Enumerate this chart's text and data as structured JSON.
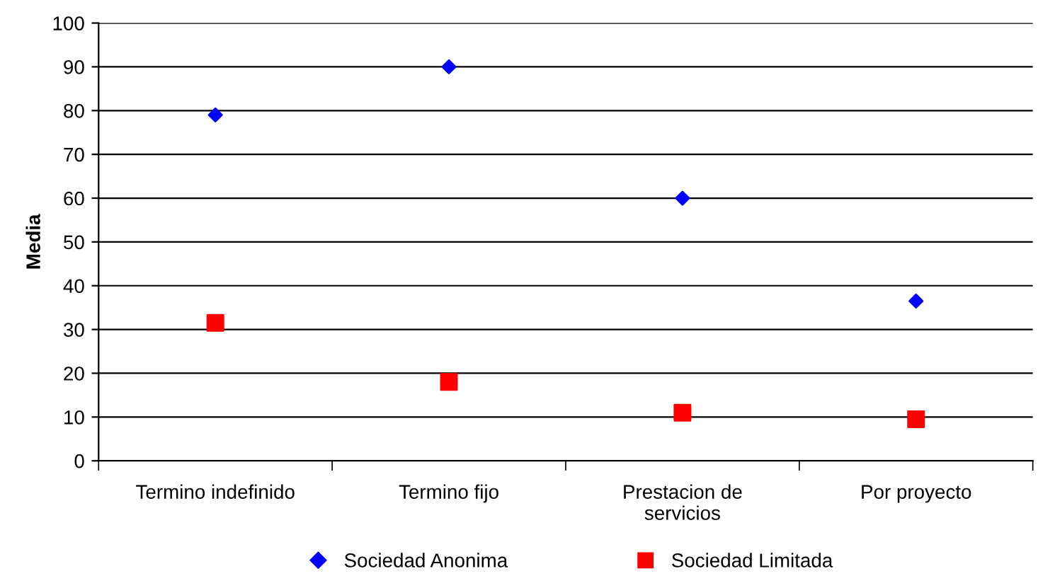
{
  "chart_data": {
    "type": "scatter",
    "ylabel": "Media",
    "categories": [
      "Termino indefinido",
      "Termino fijo",
      "Prestacion de\nservicios",
      "Por proyecto"
    ],
    "series": [
      {
        "name": "Sociedad Anonima",
        "color": "#0000ff",
        "marker": "diamond",
        "values": [
          79,
          90,
          60,
          36.5
        ]
      },
      {
        "name": "Sociedad Limitada",
        "color": "#ff0000",
        "marker": "square",
        "values": [
          31.5,
          18,
          11,
          9.5
        ]
      }
    ],
    "ylim": [
      0,
      100
    ],
    "yticks": [
      0,
      10,
      20,
      30,
      40,
      50,
      60,
      70,
      80,
      90,
      100
    ],
    "grid": "y",
    "legend": "bottom"
  }
}
